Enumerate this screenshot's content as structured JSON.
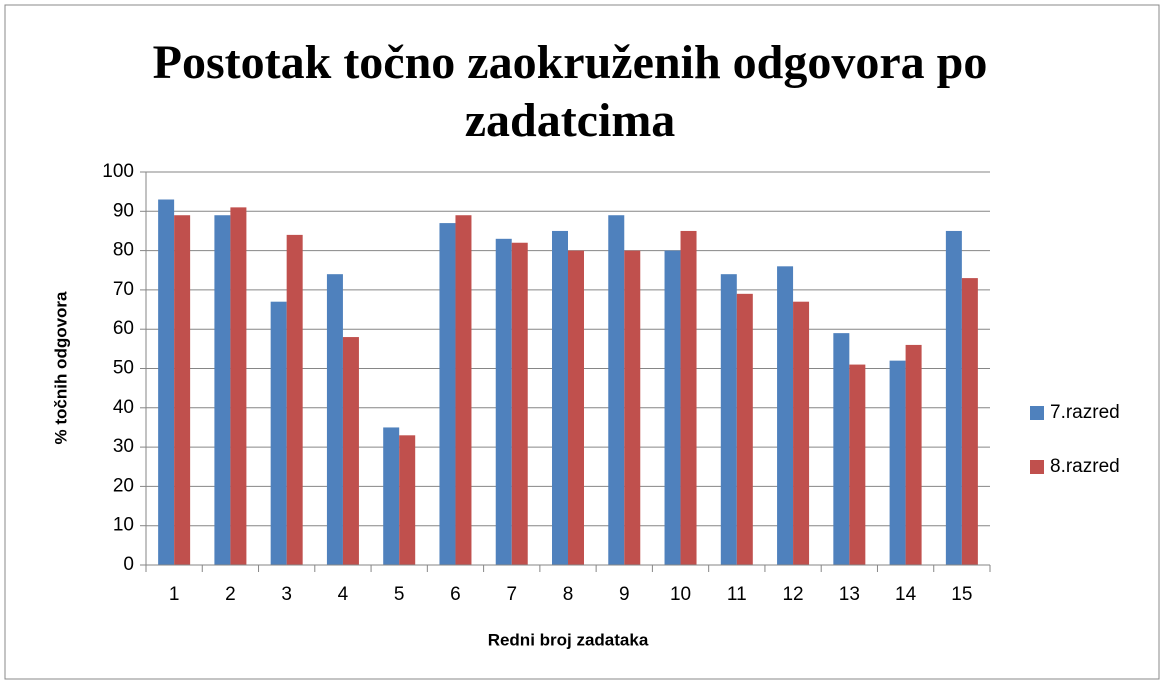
{
  "chart_data": {
    "type": "bar",
    "title": "Postotak točno zaokruženih odgovora po zadatcima",
    "x_label": "Redni broj zadataka",
    "y_label": "% točnih odgovora",
    "categories": [
      "1",
      "2",
      "3",
      "4",
      "5",
      "6",
      "7",
      "8",
      "9",
      "10",
      "11",
      "12",
      "13",
      "14",
      "15"
    ],
    "series": [
      {
        "name": "7.razred",
        "color": "#4f81bd",
        "values": [
          93,
          89,
          67,
          74,
          35,
          87,
          83,
          85,
          89,
          80,
          74,
          76,
          59,
          52,
          85
        ]
      },
      {
        "name": "8.razred",
        "color": "#c0504d",
        "values": [
          89,
          91,
          84,
          58,
          33,
          89,
          82,
          80,
          80,
          85,
          69,
          67,
          51,
          56,
          73
        ]
      }
    ],
    "ylim": [
      0,
      100
    ],
    "yticks": [
      0,
      10,
      20,
      30,
      40,
      50,
      60,
      70,
      80,
      90,
      100
    ],
    "grid": true,
    "legend": "right"
  }
}
